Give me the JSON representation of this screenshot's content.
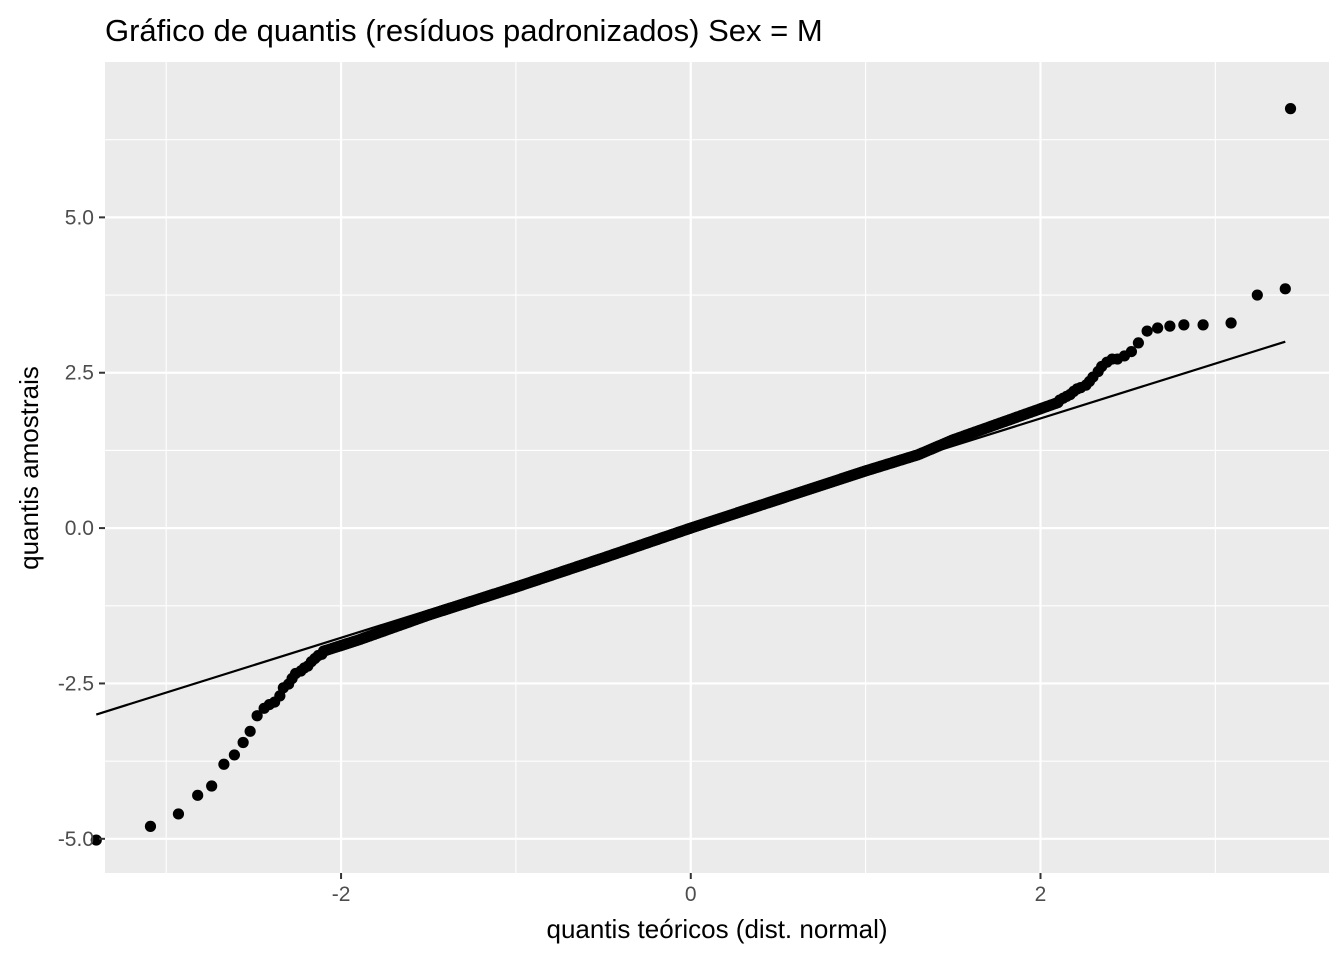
{
  "chart_data": {
    "type": "scatter",
    "title": "Gráfico de quantis (resíduos padronizados) Sex = M",
    "xlabel": "quantis teóricos (dist. normal)",
    "ylabel": "quantis amostrais",
    "xlim": [
      -3.35,
      3.65
    ],
    "ylim": [
      -5.55,
      7.5
    ],
    "x_ticks": [
      -2,
      0,
      2
    ],
    "x_tick_labels": [
      "-2",
      "0",
      "2"
    ],
    "y_ticks": [
      -5,
      -2.5,
      0,
      2.5,
      5
    ],
    "y_tick_labels": [
      "-5.0",
      "-2.5",
      "0.0",
      "2.5",
      "5.0"
    ],
    "grid": true,
    "reference_line": {
      "x": [
        -3.4,
        3.4
      ],
      "y": [
        -3.0,
        3.0
      ]
    },
    "series": [
      {
        "point_color": "#000000",
        "tail_points": [
          [
            -3.4,
            -5.02
          ],
          [
            -3.09,
            -4.8
          ],
          [
            -2.93,
            -4.6
          ],
          [
            -2.82,
            -4.3
          ],
          [
            -2.74,
            -4.15
          ],
          [
            -2.67,
            -3.8
          ],
          [
            -2.61,
            -3.65
          ],
          [
            -2.56,
            -3.45
          ],
          [
            -2.52,
            -3.27
          ],
          [
            -2.48,
            -3.02
          ],
          [
            -2.44,
            -2.9
          ],
          [
            -2.41,
            -2.84
          ],
          [
            -2.38,
            -2.8
          ],
          [
            -2.35,
            -2.7
          ],
          [
            -2.33,
            -2.57
          ],
          [
            -2.3,
            -2.51
          ],
          [
            -2.28,
            -2.42
          ],
          [
            -2.26,
            -2.34
          ],
          [
            -2.23,
            -2.3
          ],
          [
            -2.21,
            -2.25
          ],
          [
            -2.19,
            -2.22
          ],
          [
            -2.17,
            -2.15
          ],
          [
            -2.15,
            -2.1
          ],
          [
            -2.13,
            -2.05
          ],
          [
            -2.11,
            -2.03
          ],
          [
            2.11,
            2.06
          ],
          [
            2.13,
            2.09
          ],
          [
            2.15,
            2.12
          ],
          [
            2.17,
            2.15
          ],
          [
            2.19,
            2.2
          ],
          [
            2.21,
            2.24
          ],
          [
            2.23,
            2.26
          ],
          [
            2.26,
            2.3
          ],
          [
            2.28,
            2.36
          ],
          [
            2.3,
            2.43
          ],
          [
            2.33,
            2.52
          ],
          [
            2.35,
            2.6
          ],
          [
            2.38,
            2.67
          ],
          [
            2.41,
            2.72
          ],
          [
            2.44,
            2.72
          ],
          [
            2.48,
            2.77
          ],
          [
            2.52,
            2.84
          ],
          [
            2.56,
            2.98
          ],
          [
            2.61,
            3.17
          ],
          [
            2.67,
            3.22
          ],
          [
            2.74,
            3.25
          ],
          [
            2.82,
            3.27
          ],
          [
            2.93,
            3.27
          ],
          [
            3.09,
            3.3
          ],
          [
            3.24,
            3.75
          ],
          [
            3.4,
            3.85
          ],
          [
            3.43,
            6.75
          ]
        ],
        "central": {
          "x_range": [
            -2.1,
            2.1
          ],
          "count": 320,
          "breakpoints": [
            [
              -2.1,
              -1.98
            ],
            [
              -1.9,
              -1.8
            ],
            [
              -1.5,
              -1.4
            ],
            [
              -1.0,
              -0.95
            ],
            [
              -0.5,
              -0.48
            ],
            [
              0.0,
              0.0
            ],
            [
              0.5,
              0.46
            ],
            [
              1.0,
              0.92
            ],
            [
              1.3,
              1.18
            ],
            [
              1.5,
              1.42
            ],
            [
              1.8,
              1.72
            ],
            [
              2.1,
              2.02
            ]
          ]
        }
      }
    ]
  }
}
